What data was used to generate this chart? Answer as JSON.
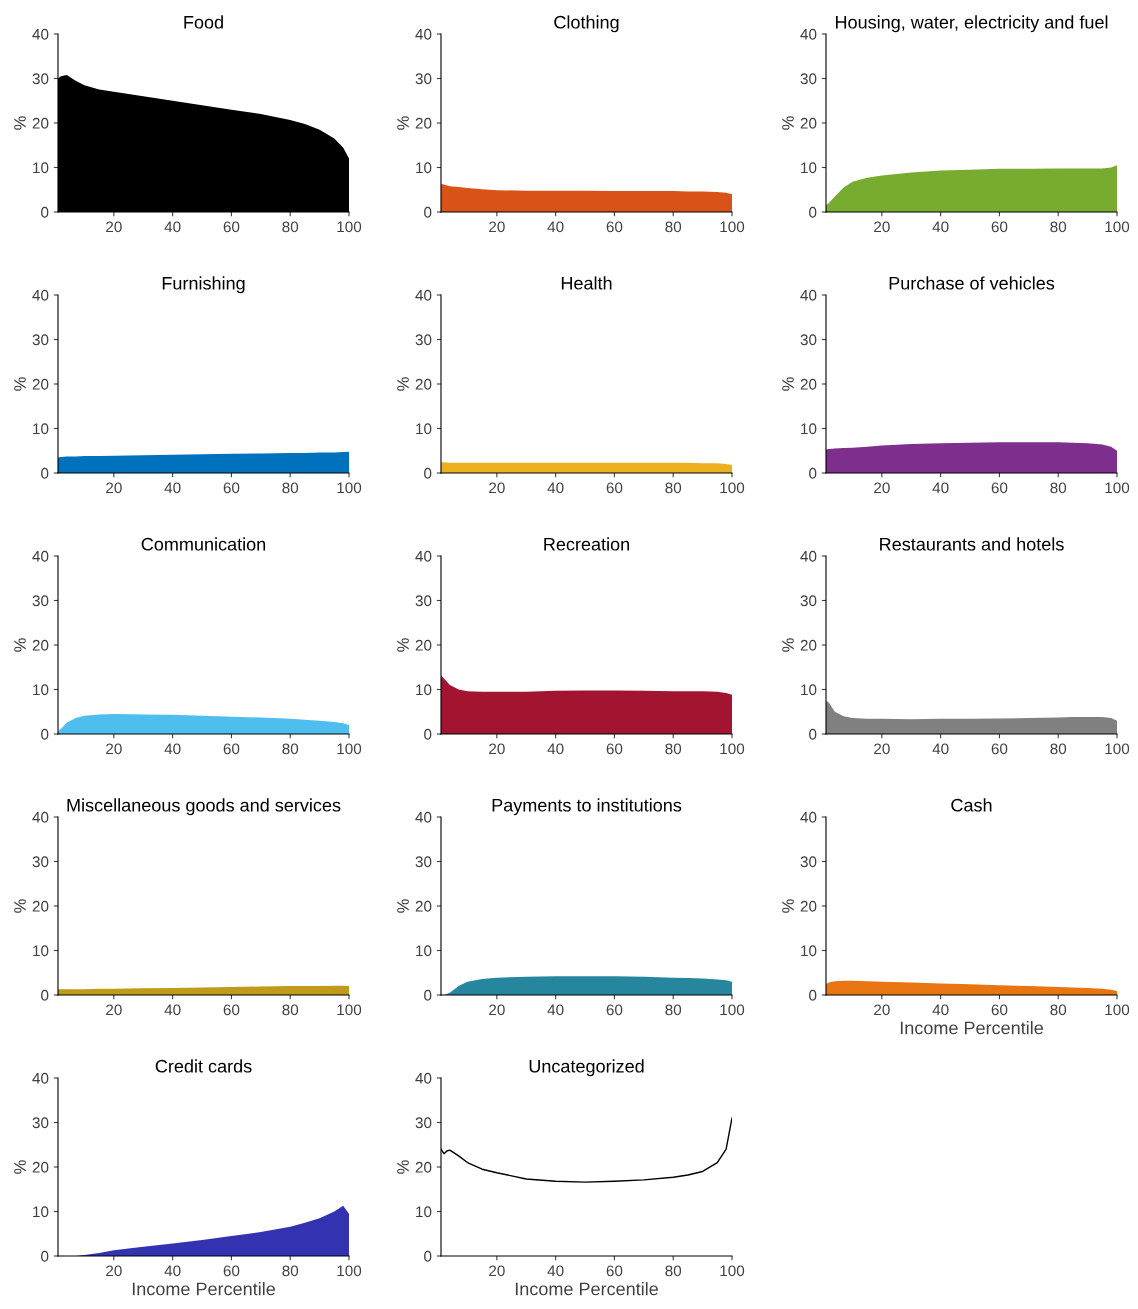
{
  "chart_data": [
    {
      "type": "area",
      "title": "Food",
      "ylabel": "%",
      "x": [
        1,
        2,
        4,
        7,
        10,
        15,
        20,
        30,
        40,
        50,
        60,
        70,
        80,
        85,
        90,
        95,
        98,
        100
      ],
      "series": [
        {
          "color": "#000000",
          "values": [
            30,
            30.5,
            30.8,
            29.5,
            28.5,
            27.5,
            27,
            26,
            25,
            24,
            23,
            22,
            20.7,
            19.8,
            18.5,
            16.5,
            14.5,
            12
          ]
        }
      ],
      "xlim": [
        1,
        100
      ],
      "xticks": [
        20,
        40,
        60,
        80,
        100
      ],
      "ylim": [
        0,
        40
      ],
      "yticks": [
        0,
        10,
        20,
        30,
        40
      ]
    },
    {
      "type": "area",
      "title": "Clothing",
      "ylabel": "%",
      "x": [
        1,
        2,
        4,
        7,
        10,
        15,
        20,
        30,
        40,
        50,
        60,
        70,
        80,
        85,
        90,
        95,
        98,
        100
      ],
      "series": [
        {
          "color": "#d95319",
          "values": [
            6.3,
            6.2,
            5.8,
            5.6,
            5.4,
            5.1,
            4.9,
            4.8,
            4.8,
            4.8,
            4.7,
            4.7,
            4.7,
            4.6,
            4.6,
            4.5,
            4.3,
            4.0
          ]
        }
      ],
      "xlim": [
        1,
        100
      ],
      "xticks": [
        20,
        40,
        60,
        80,
        100
      ],
      "ylim": [
        0,
        40
      ],
      "yticks": [
        0,
        10,
        20,
        30,
        40
      ]
    },
    {
      "type": "area",
      "title": "Housing, water, electricity and fuel",
      "ylabel": "%",
      "x": [
        1,
        2,
        4,
        7,
        10,
        15,
        20,
        30,
        40,
        50,
        60,
        70,
        80,
        85,
        90,
        95,
        98,
        100
      ],
      "series": [
        {
          "color": "#77ac30",
          "values": [
            1.5,
            2,
            3.5,
            5.5,
            6.8,
            7.7,
            8.2,
            8.9,
            9.3,
            9.5,
            9.7,
            9.7,
            9.8,
            9.8,
            9.8,
            9.8,
            10,
            10.5
          ]
        }
      ],
      "xlim": [
        1,
        100
      ],
      "xticks": [
        20,
        40,
        60,
        80,
        100
      ],
      "ylim": [
        0,
        40
      ],
      "yticks": [
        0,
        10,
        20,
        30,
        40
      ]
    },
    {
      "type": "area",
      "title": "Furnishing",
      "ylabel": "%",
      "x": [
        1,
        2,
        4,
        7,
        10,
        15,
        20,
        30,
        40,
        50,
        60,
        70,
        80,
        85,
        90,
        95,
        98,
        100
      ],
      "series": [
        {
          "color": "#0072bd",
          "values": [
            3.5,
            3.6,
            3.7,
            3.7,
            3.8,
            3.8,
            3.9,
            4.0,
            4.1,
            4.2,
            4.3,
            4.4,
            4.5,
            4.5,
            4.6,
            4.6,
            4.7,
            4.8
          ]
        }
      ],
      "xlim": [
        1,
        100
      ],
      "xticks": [
        20,
        40,
        60,
        80,
        100
      ],
      "ylim": [
        0,
        40
      ],
      "yticks": [
        0,
        10,
        20,
        30,
        40
      ]
    },
    {
      "type": "area",
      "title": "Health",
      "ylabel": "%",
      "x": [
        1,
        2,
        4,
        7,
        10,
        15,
        20,
        30,
        40,
        50,
        60,
        70,
        80,
        85,
        90,
        95,
        98,
        100
      ],
      "series": [
        {
          "color": "#edb120",
          "values": [
            2.4,
            2.4,
            2.3,
            2.3,
            2.3,
            2.3,
            2.3,
            2.3,
            2.3,
            2.3,
            2.3,
            2.3,
            2.3,
            2.3,
            2.2,
            2.2,
            2.0,
            1.8
          ]
        }
      ],
      "xlim": [
        1,
        100
      ],
      "xticks": [
        20,
        40,
        60,
        80,
        100
      ],
      "ylim": [
        0,
        40
      ],
      "yticks": [
        0,
        10,
        20,
        30,
        40
      ]
    },
    {
      "type": "area",
      "title": "Purchase of vehicles",
      "ylabel": "%",
      "x": [
        1,
        2,
        4,
        7,
        10,
        15,
        20,
        30,
        40,
        50,
        60,
        70,
        80,
        85,
        90,
        95,
        98,
        100
      ],
      "series": [
        {
          "color": "#7e2f8e",
          "values": [
            5.3,
            5.4,
            5.5,
            5.6,
            5.7,
            5.9,
            6.2,
            6.5,
            6.7,
            6.8,
            6.9,
            6.9,
            6.9,
            6.8,
            6.7,
            6.4,
            5.9,
            5.0
          ]
        }
      ],
      "xlim": [
        1,
        100
      ],
      "xticks": [
        20,
        40,
        60,
        80,
        100
      ],
      "ylim": [
        0,
        40
      ],
      "yticks": [
        0,
        10,
        20,
        30,
        40
      ]
    },
    {
      "type": "area",
      "title": "Communication",
      "ylabel": "%",
      "x": [
        1,
        2,
        4,
        7,
        10,
        15,
        20,
        30,
        40,
        50,
        60,
        70,
        80,
        85,
        90,
        95,
        98,
        100
      ],
      "series": [
        {
          "color": "#4dbeee",
          "values": [
            0.5,
            1.2,
            2.5,
            3.6,
            4.1,
            4.4,
            4.5,
            4.4,
            4.3,
            4.1,
            3.9,
            3.7,
            3.4,
            3.2,
            3.0,
            2.7,
            2.4,
            2.0
          ]
        }
      ],
      "xlim": [
        1,
        100
      ],
      "xticks": [
        20,
        40,
        60,
        80,
        100
      ],
      "ylim": [
        0,
        40
      ],
      "yticks": [
        0,
        10,
        20,
        30,
        40
      ]
    },
    {
      "type": "area",
      "title": "Recreation",
      "ylabel": "%",
      "x": [
        1,
        2,
        4,
        7,
        10,
        15,
        20,
        30,
        40,
        50,
        60,
        70,
        80,
        85,
        90,
        95,
        98,
        100
      ],
      "series": [
        {
          "color": "#a2142f",
          "values": [
            13.2,
            12.5,
            11,
            10,
            9.6,
            9.5,
            9.5,
            9.5,
            9.7,
            9.8,
            9.8,
            9.7,
            9.6,
            9.6,
            9.6,
            9.5,
            9.2,
            8.8
          ]
        }
      ],
      "xlim": [
        1,
        100
      ],
      "xticks": [
        20,
        40,
        60,
        80,
        100
      ],
      "ylim": [
        0,
        40
      ],
      "yticks": [
        0,
        10,
        20,
        30,
        40
      ]
    },
    {
      "type": "area",
      "title": "Restaurants and hotels",
      "ylabel": "%",
      "x": [
        1,
        2,
        4,
        7,
        10,
        15,
        20,
        30,
        40,
        50,
        60,
        70,
        80,
        85,
        90,
        95,
        98,
        100
      ],
      "series": [
        {
          "color": "#808080",
          "values": [
            7.5,
            7,
            5,
            4,
            3.6,
            3.4,
            3.4,
            3.3,
            3.4,
            3.4,
            3.5,
            3.6,
            3.7,
            3.8,
            3.8,
            3.8,
            3.6,
            3.0
          ]
        }
      ],
      "xlim": [
        1,
        100
      ],
      "xticks": [
        20,
        40,
        60,
        80,
        100
      ],
      "ylim": [
        0,
        40
      ],
      "yticks": [
        0,
        10,
        20,
        30,
        40
      ]
    },
    {
      "type": "area",
      "title": "Miscellaneous goods and services",
      "ylabel": "%",
      "x": [
        1,
        2,
        4,
        7,
        10,
        15,
        20,
        30,
        40,
        50,
        60,
        70,
        80,
        85,
        90,
        95,
        98,
        100
      ],
      "series": [
        {
          "color": "#bf9b19",
          "values": [
            1.3,
            1.3,
            1.3,
            1.3,
            1.3,
            1.4,
            1.4,
            1.5,
            1.6,
            1.7,
            1.8,
            1.9,
            2.0,
            2.0,
            2.0,
            2.1,
            2.1,
            2.0
          ]
        }
      ],
      "xlim": [
        1,
        100
      ],
      "xticks": [
        20,
        40,
        60,
        80,
        100
      ],
      "ylim": [
        0,
        40
      ],
      "yticks": [
        0,
        10,
        20,
        30,
        40
      ]
    },
    {
      "type": "area",
      "title": "Payments to institutions",
      "ylabel": "%",
      "x": [
        1,
        2,
        4,
        7,
        10,
        15,
        20,
        30,
        40,
        50,
        60,
        70,
        80,
        85,
        90,
        95,
        98,
        100
      ],
      "series": [
        {
          "color": "#25869e",
          "values": [
            0,
            0,
            0.5,
            2,
            3,
            3.6,
            3.9,
            4.1,
            4.2,
            4.2,
            4.2,
            4.1,
            3.9,
            3.8,
            3.7,
            3.5,
            3.3,
            3.0
          ]
        }
      ],
      "xlim": [
        1,
        100
      ],
      "xticks": [
        20,
        40,
        60,
        80,
        100
      ],
      "ylim": [
        0,
        40
      ],
      "yticks": [
        0,
        10,
        20,
        30,
        40
      ]
    },
    {
      "type": "area",
      "title": "Cash",
      "ylabel": "%",
      "xlabel": "Income Percentile",
      "x": [
        1,
        2,
        4,
        7,
        10,
        15,
        20,
        30,
        40,
        50,
        60,
        70,
        80,
        85,
        90,
        95,
        98,
        100
      ],
      "series": [
        {
          "color": "#e87511",
          "values": [
            2.5,
            2.8,
            3.1,
            3.2,
            3.2,
            3.1,
            3.0,
            2.8,
            2.6,
            2.4,
            2.2,
            2.0,
            1.8,
            1.7,
            1.6,
            1.4,
            1.2,
            0.9
          ]
        }
      ],
      "xlim": [
        1,
        100
      ],
      "xticks": [
        20,
        40,
        60,
        80,
        100
      ],
      "ylim": [
        0,
        40
      ],
      "yticks": [
        0,
        10,
        20,
        30,
        40
      ]
    },
    {
      "type": "area",
      "title": "Credit cards",
      "ylabel": "%",
      "xlabel": "Income Percentile",
      "x": [
        1,
        2,
        4,
        7,
        10,
        15,
        20,
        30,
        40,
        50,
        60,
        70,
        80,
        85,
        90,
        95,
        98,
        100
      ],
      "series": [
        {
          "color": "#3333b2",
          "values": [
            0,
            0,
            0,
            0,
            0.2,
            0.7,
            1.3,
            2.1,
            2.8,
            3.6,
            4.5,
            5.4,
            6.6,
            7.5,
            8.5,
            10,
            11.3,
            9.5
          ]
        }
      ],
      "xlim": [
        1,
        100
      ],
      "xticks": [
        20,
        40,
        60,
        80,
        100
      ],
      "ylim": [
        0,
        40
      ],
      "yticks": [
        0,
        10,
        20,
        30,
        40
      ]
    },
    {
      "type": "line",
      "title": "Uncategorized",
      "ylabel": "%",
      "xlabel": "Income Percentile",
      "x": [
        1,
        2,
        3,
        4,
        7,
        10,
        15,
        20,
        30,
        40,
        50,
        60,
        70,
        80,
        85,
        90,
        95,
        98,
        100
      ],
      "series": [
        {
          "color": "#000000",
          "values": [
            24,
            23,
            23.6,
            23.8,
            22.5,
            21,
            19.5,
            18.7,
            17.3,
            16.8,
            16.6,
            16.8,
            17.1,
            17.7,
            18.2,
            19,
            21,
            24,
            31
          ]
        }
      ],
      "xlim": [
        1,
        100
      ],
      "xticks": [
        20,
        40,
        60,
        80,
        100
      ],
      "ylim": [
        0,
        40
      ],
      "yticks": [
        0,
        10,
        20,
        30,
        40
      ]
    }
  ]
}
